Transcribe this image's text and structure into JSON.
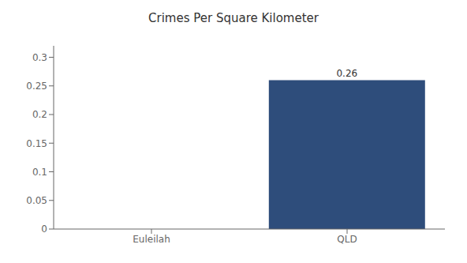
{
  "chart_data": {
    "type": "bar",
    "title": "Crimes Per Square Kilometer",
    "categories": [
      "Euleilah",
      "QLD"
    ],
    "values": [
      0,
      0.26
    ],
    "color": "#2e4d7b",
    "ylim": [
      0,
      0.32
    ],
    "yticks": [
      0,
      0.05,
      0.1,
      0.15,
      0.2,
      0.25,
      0.3
    ],
    "grid": false,
    "data_labels": true
  }
}
